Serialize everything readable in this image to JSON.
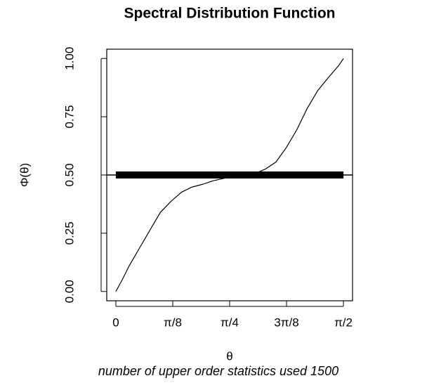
{
  "chart_data": {
    "type": "line",
    "title": "Spectral Distribution Function",
    "subtitle": "number of upper order statistics used 1500",
    "x_label": "θ",
    "y_label": "Φ(θ)",
    "x": [
      0,
      0.043,
      0.092,
      0.164,
      0.236,
      0.308,
      0.381,
      0.453,
      0.525,
      0.598,
      0.67,
      0.742,
      0.814,
      0.887,
      0.959,
      1.031,
      1.104,
      1.176,
      1.248,
      1.32,
      1.393,
      1.465,
      1.537,
      1.571
    ],
    "values": [
      0,
      0.049,
      0.11,
      0.187,
      0.264,
      0.34,
      0.387,
      0.426,
      0.448,
      0.46,
      0.475,
      0.485,
      0.494,
      0.497,
      0.506,
      0.525,
      0.555,
      0.617,
      0.693,
      0.785,
      0.862,
      0.917,
      0.969,
      1
    ],
    "color": "#000000",
    "reference_line": 0.5,
    "xlim": [
      -0.0628,
      1.6336
    ],
    "ylim": [
      -0.04,
      1.04
    ],
    "xticks": [
      0,
      {
        "value": 0.3927,
        "label": "π/8"
      },
      {
        "value": 0.7854,
        "label": "π/4"
      },
      {
        "value": 1.1781,
        "label": "3π/8"
      },
      {
        "value": 1.5708,
        "label": "π/2"
      }
    ],
    "yticks": [
      {
        "value": 0,
        "label": "0.00"
      },
      {
        "value": 0.25,
        "label": "0.25"
      },
      {
        "value": 0.5,
        "label": "0.50"
      },
      {
        "value": 0.75,
        "label": "0.75"
      },
      {
        "value": 1,
        "label": "1.00"
      }
    ]
  }
}
